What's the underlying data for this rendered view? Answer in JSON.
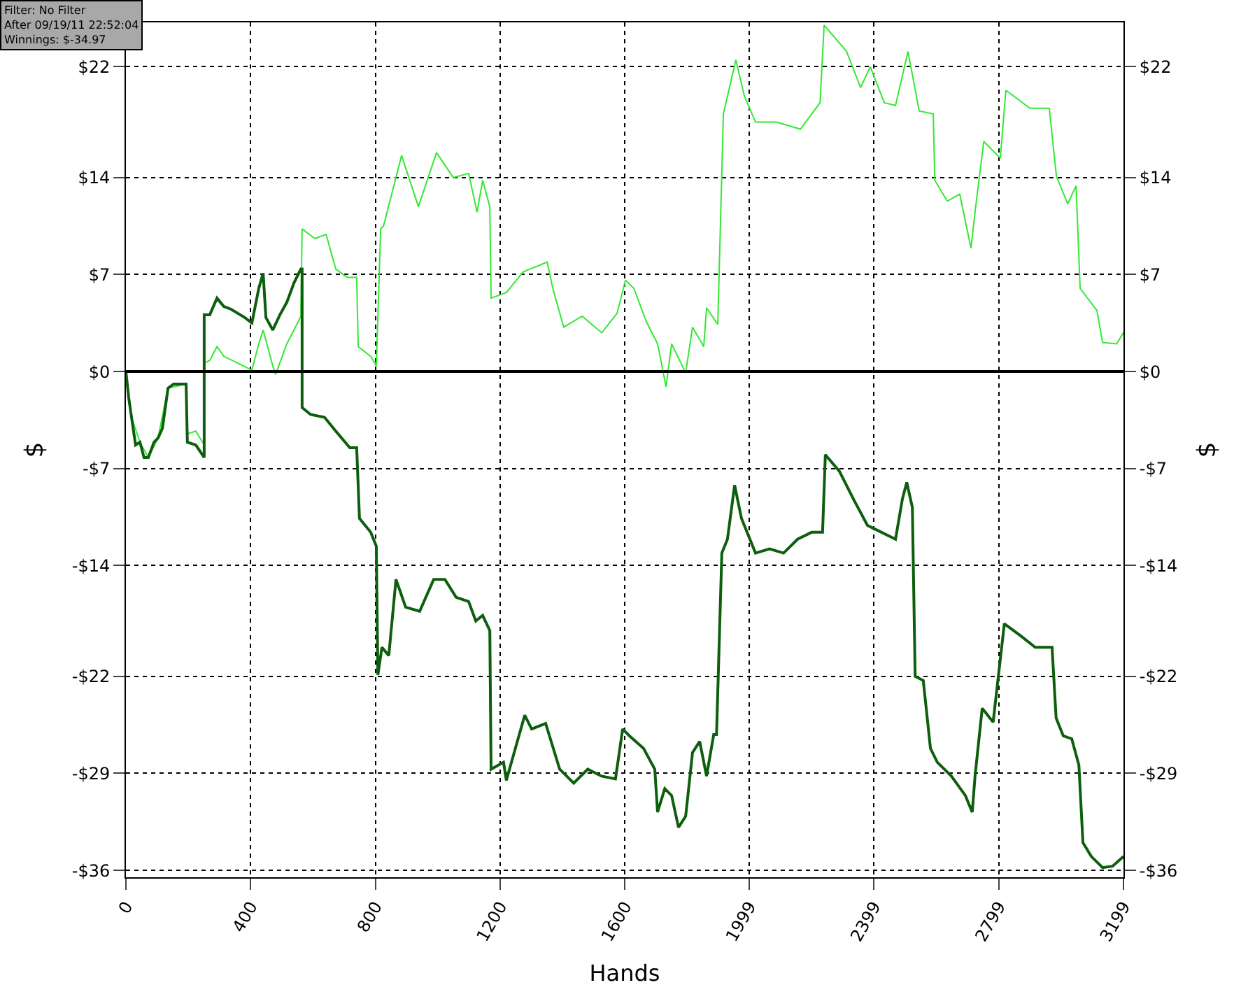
{
  "chart_data": {
    "type": "line",
    "xlabel": "Hands",
    "ylabel": "$",
    "y2label": "$",
    "annotations": [
      "Filter: No Filter\nAfter 09/19/11 22:52:04\nWinnings: $-34.97"
    ],
    "xlim": [
      0,
      3199
    ],
    "xticks": [
      0,
      400,
      800,
      1200,
      1600,
      1999,
      2399,
      2799,
      3199
    ],
    "ylim": [
      -36.5,
      25.2
    ],
    "yticks": [
      {
        "value": -36,
        "label": "-$36"
      },
      {
        "value": -29,
        "label": "-$29"
      },
      {
        "value": -22,
        "label": "-$22"
      },
      {
        "value": -14,
        "label": "-$14"
      },
      {
        "value": -7,
        "label": "-$7"
      },
      {
        "value": 0,
        "label": "$0"
      },
      {
        "value": 7,
        "label": "$7"
      },
      {
        "value": 14,
        "label": "$14"
      },
      {
        "value": 22,
        "label": "$22"
      }
    ],
    "y2lim": [
      -36.5,
      25.2
    ],
    "y2ticks": [
      {
        "value": -36,
        "label": "-$36"
      },
      {
        "value": -29,
        "label": "-$29"
      },
      {
        "value": -22,
        "label": "-$22"
      },
      {
        "value": -14,
        "label": "-$14"
      },
      {
        "value": -7,
        "label": "-$7"
      },
      {
        "value": 0,
        "label": "$0"
      },
      {
        "value": 7,
        "label": "$7"
      },
      {
        "value": 14,
        "label": "$14"
      },
      {
        "value": 22,
        "label": "$22"
      }
    ],
    "grid": true,
    "marker": "none",
    "line_style": "solid",
    "ref_lines": [
      {
        "axis": "y",
        "value": 0,
        "label": null,
        "color": "#000000"
      }
    ],
    "series": [
      {
        "color": "#33e833",
        "x": [
          0,
          18,
          45,
          72,
          103,
          135,
          193,
          197,
          224,
          251,
          251,
          269,
          292,
          314,
          359,
          404,
          426,
          440,
          471,
          480,
          516,
          539,
          561,
          565,
          606,
          642,
          673,
          709,
          740,
          745,
          785,
          803,
          817,
          826,
          884,
          938,
          996,
          1050,
          1099,
          1126,
          1144,
          1167,
          1171,
          1220,
          1274,
          1351,
          1369,
          1404,
          1463,
          1526,
          1575,
          1602,
          1629,
          1669,
          1705,
          1732,
          1750,
          1795,
          1817,
          1853,
          1862,
          1898,
          1916,
          1956,
          1983,
          2019,
          2086,
          2163,
          2226,
          2239,
          2311,
          2356,
          2387,
          2432,
          2468,
          2508,
          2544,
          2589,
          2594,
          2634,
          2674,
          2710,
          2724,
          2751,
          2804,
          2822,
          2899,
          2961,
          2984,
          3020,
          3047,
          3060,
          3114,
          3132,
          3177,
          3199
        ],
        "values": [
          0,
          -3.3,
          -5.1,
          -6.2,
          -4.8,
          -1.2,
          -0.9,
          -4.5,
          -4.3,
          -5.3,
          0.6,
          0.8,
          1.8,
          1.1,
          0.6,
          0.1,
          2.0,
          3.0,
          0.4,
          -0.2,
          2.0,
          3.0,
          4.0,
          10.3,
          9.6,
          9.9,
          7.4,
          6.8,
          6.8,
          1.8,
          1.1,
          0.4,
          10.3,
          10.5,
          15.6,
          11.9,
          15.8,
          14.0,
          14.3,
          11.5,
          13.8,
          11.9,
          5.3,
          5.7,
          7.2,
          7.9,
          6.0,
          3.2,
          4.0,
          2.8,
          4.2,
          6.6,
          6.0,
          3.6,
          2.0,
          -1.1,
          2.0,
          -0.1,
          3.2,
          1.8,
          4.6,
          3.4,
          18.6,
          22.5,
          19.9,
          18.0,
          18.0,
          17.5,
          19.4,
          25.0,
          23.1,
          20.5,
          22.0,
          19.4,
          19.2,
          23.1,
          18.8,
          18.6,
          13.8,
          12.3,
          12.8,
          8.9,
          11.7,
          16.6,
          15.4,
          20.3,
          19.0,
          19.0,
          14.1,
          12.1,
          13.4,
          6.0,
          4.4,
          2.1,
          2.0,
          2.8
        ]
      },
      {
        "color": "#0d5e0d",
        "x": [
          0,
          9,
          18,
          31,
          45,
          58,
          72,
          90,
          103,
          117,
          135,
          153,
          193,
          197,
          224,
          251,
          251,
          269,
          292,
          314,
          337,
          381,
          404,
          426,
          440,
          449,
          471,
          494,
          516,
          539,
          561,
          565,
          565,
          592,
          637,
          673,
          718,
          740,
          749,
          785,
          803,
          808,
          821,
          843,
          866,
          897,
          942,
          987,
          1023,
          1059,
          1099,
          1122,
          1144,
          1167,
          1171,
          1211,
          1220,
          1279,
          1301,
          1346,
          1391,
          1436,
          1481,
          1525,
          1570,
          1593,
          1615,
          1660,
          1696,
          1705,
          1728,
          1750,
          1772,
          1795,
          1817,
          1840,
          1862,
          1885,
          1894,
          1911,
          1929,
          1952,
          1974,
          2019,
          2064,
          2109,
          2154,
          2199,
          2234,
          2243,
          2288,
          2333,
          2378,
          2423,
          2468,
          2490,
          2504,
          2522,
          2531,
          2557,
          2580,
          2602,
          2647,
          2692,
          2714,
          2723,
          2746,
          2781,
          2817,
          2871,
          2916,
          2970,
          2983,
          3006,
          3033,
          3056,
          3069,
          3096,
          3132,
          3164,
          3199
        ],
        "values": [
          0,
          -1.9,
          -3.3,
          -5.3,
          -5.1,
          -6.2,
          -6.2,
          -5.1,
          -4.8,
          -4.1,
          -1.2,
          -0.9,
          -0.9,
          -5.1,
          -5.3,
          -6.2,
          4.1,
          4.1,
          5.3,
          4.7,
          4.5,
          3.9,
          3.5,
          6.0,
          7.1,
          3.9,
          3.0,
          4.1,
          5.0,
          6.4,
          7.4,
          7.4,
          -2.6,
          -3.1,
          -3.3,
          -4.3,
          -5.5,
          -5.5,
          -10.6,
          -11.6,
          -12.6,
          -21.9,
          -19.9,
          -20.5,
          -15.0,
          -17.0,
          -17.3,
          -15.0,
          -15.0,
          -16.3,
          -16.6,
          -18.0,
          -17.6,
          -18.7,
          -28.7,
          -28.2,
          -29.5,
          -24.8,
          -25.8,
          -25.4,
          -28.7,
          -29.7,
          -28.7,
          -29.2,
          -29.4,
          -25.8,
          -26.3,
          -27.2,
          -28.7,
          -31.8,
          -30.1,
          -30.6,
          -32.9,
          -32.1,
          -27.5,
          -26.7,
          -29.2,
          -26.2,
          -26.2,
          -13.1,
          -12.1,
          -8.2,
          -10.6,
          -13.1,
          -12.8,
          -13.1,
          -12.1,
          -11.6,
          -11.6,
          -6.0,
          -7.2,
          -9.2,
          -11.1,
          -11.6,
          -12.1,
          -9.2,
          -8.0,
          -9.8,
          -22.0,
          -22.3,
          -27.2,
          -28.2,
          -29.2,
          -30.6,
          -31.8,
          -29.2,
          -24.3,
          -25.3,
          -18.2,
          -19.1,
          -19.9,
          -19.9,
          -25.0,
          -26.3,
          -26.5,
          -28.4,
          -34.0,
          -35.0,
          -35.8,
          -35.7,
          -35.0
        ]
      }
    ]
  }
}
